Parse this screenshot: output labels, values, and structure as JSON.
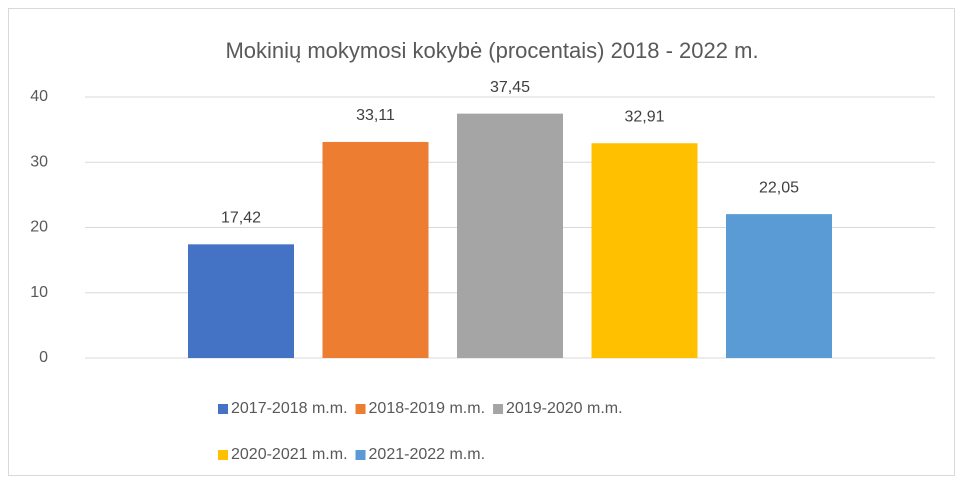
{
  "chart_data": {
    "type": "bar",
    "title": "Mokinių mokymosi kokybė (procentais) 2018 - 2022 m.",
    "categories": [
      null
    ],
    "series": [
      {
        "name": "2017-2018 m.m.",
        "color": "#4472c4",
        "values": [
          17.42
        ],
        "value_labels": [
          "17,42"
        ]
      },
      {
        "name": "2018-2019 m.m.",
        "color": "#ed7d31",
        "values": [
          33.11
        ],
        "value_labels": [
          "33,11"
        ]
      },
      {
        "name": "2019-2020 m.m.",
        "color": "#a5a5a5",
        "values": [
          37.45
        ],
        "value_labels": [
          "37,45"
        ]
      },
      {
        "name": "2020-2021 m.m.",
        "color": "#ffc000",
        "values": [
          32.91
        ],
        "value_labels": [
          "32,91"
        ]
      },
      {
        "name": "2021-2022 m.m.",
        "color": "#5b9bd5",
        "values": [
          22.05
        ],
        "value_labels": [
          "22,05"
        ]
      }
    ],
    "ylim": [
      0,
      40
    ],
    "yticks": [
      0,
      10,
      20,
      30,
      40
    ],
    "grid": true,
    "legend": "bottom"
  }
}
